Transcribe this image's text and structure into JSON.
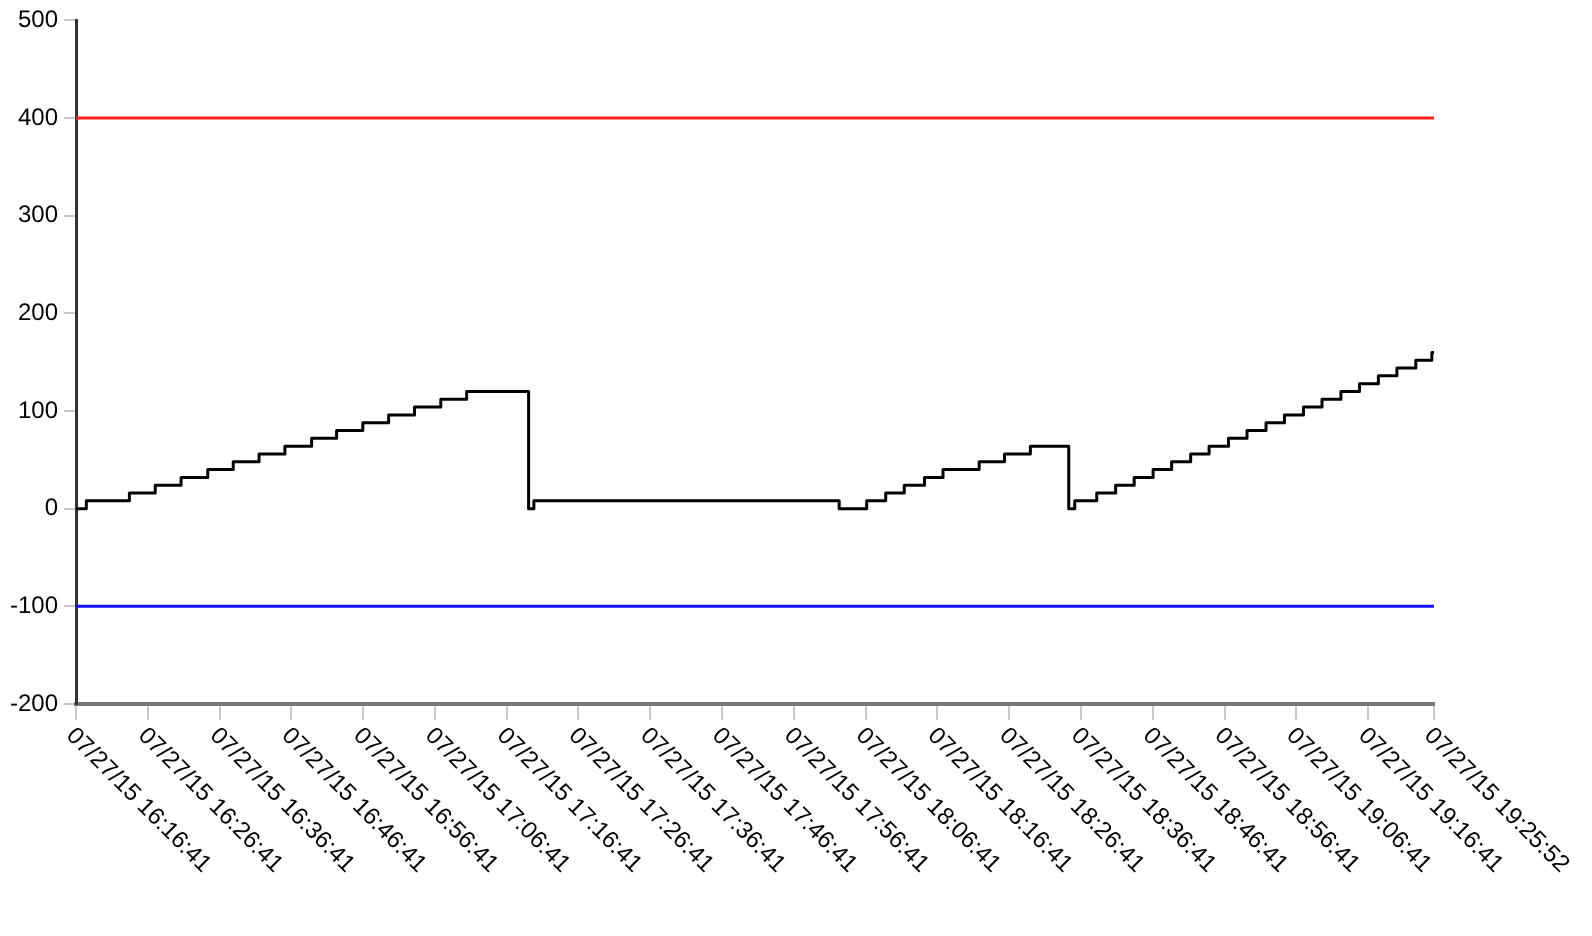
{
  "chart_data": {
    "type": "step",
    "x": [
      "--07-27T16:16:41",
      "--07-27T16:18:07",
      "--07-27T16:24:07",
      "--07-27T16:27:43",
      "--07-27T16:31:19",
      "--07-27T16:35:02",
      "--07-27T16:38:35",
      "--07-27T16:42:11",
      "--07-27T16:45:47",
      "--07-27T16:49:30",
      "--07-27T16:52:59",
      "--07-27T16:56:38",
      "--07-27T17:00:14",
      "--07-27T17:03:50",
      "--07-27T17:07:30",
      "--07-27T17:11:06",
      "--07-27T17:19:44",
      "--07-27T17:20:28",
      "--07-27T18:03:00",
      "--07-27T18:06:50",
      "--07-27T18:09:29",
      "--07-27T18:12:04",
      "--07-27T18:14:53",
      "--07-27T18:17:28",
      "--07-27T18:22:30",
      "--07-27T18:26:02",
      "--07-27T18:29:38",
      "--07-27T18:34:59",
      "--07-27T18:35:49",
      "--07-27T18:38:53",
      "--07-27T18:41:31",
      "--07-27T18:44:06",
      "--07-27T18:46:44",
      "--07-27T18:49:19",
      "--07-27T18:51:58",
      "--07-27T18:54:32",
      "--07-27T18:57:14",
      "--07-27T18:59:49",
      "--07-27T19:02:28",
      "--07-27T19:05:02",
      "--07-27T19:07:41",
      "--07-27T19:10:16",
      "--07-27T19:12:54",
      "--07-27T19:15:29",
      "--07-27T19:18:07",
      "--07-27T19:20:42",
      "--07-27T19:23:20",
      "--07-27T19:25:34",
      "--07-27T19:25:52"
    ],
    "series": [
      {
        "color": "#000000",
        "values": [
          0,
          8,
          16,
          24,
          32,
          40,
          48,
          56,
          64,
          72,
          80,
          88,
          96,
          104,
          112,
          120,
          0,
          8,
          0,
          8,
          16,
          24,
          32,
          40,
          48,
          56,
          64,
          0,
          8,
          16,
          24,
          32,
          40,
          48,
          56,
          64,
          72,
          80,
          88,
          96,
          104,
          112,
          120,
          128,
          136,
          144,
          152,
          160,
          160
        ]
      }
    ],
    "xlim": [
      "--07-27T16:16:41",
      "--07-27T19:25:52"
    ],
    "xticks": [
      {
        "value": "--07-27T16:16:41",
        "label": "07/27/15 16:16:41"
      },
      {
        "value": "--07-27T16:26:41",
        "label": "07/27/15 16:26:41"
      },
      {
        "value": "--07-27T16:36:41",
        "label": "07/27/15 16:36:41"
      },
      {
        "value": "--07-27T16:46:41",
        "label": "07/27/15 16:46:41"
      },
      {
        "value": "--07-27T16:56:41",
        "label": "07/27/15 16:56:41"
      },
      {
        "value": "--07-27T17:06:41",
        "label": "07/27/15 17:06:41"
      },
      {
        "value": "--07-27T17:16:41",
        "label": "07/27/15 17:16:41"
      },
      {
        "value": "--07-27T17:26:41",
        "label": "07/27/15 17:26:41"
      },
      {
        "value": "--07-27T17:36:41",
        "label": "07/27/15 17:36:41"
      },
      {
        "value": "--07-27T17:46:41",
        "label": "07/27/15 17:46:41"
      },
      {
        "value": "--07-27T17:56:41",
        "label": "07/27/15 17:56:41"
      },
      {
        "value": "--07-27T18:06:41",
        "label": "07/27/15 18:06:41"
      },
      {
        "value": "--07-27T18:16:41",
        "label": "07/27/15 18:16:41"
      },
      {
        "value": "--07-27T18:26:41",
        "label": "07/27/15 18:26:41"
      },
      {
        "value": "--07-27T18:36:41",
        "label": "07/27/15 18:36:41"
      },
      {
        "value": "--07-27T18:46:41",
        "label": "07/27/15 18:46:41"
      },
      {
        "value": "--07-27T18:56:41",
        "label": "07/27/15 18:56:41"
      },
      {
        "value": "--07-27T19:06:41",
        "label": "07/27/15 19:06:41"
      },
      {
        "value": "--07-27T19:16:41",
        "label": "07/27/15 19:16:41"
      },
      {
        "value": "--07-27T19:25:52",
        "label": "07/27/15 19:25:52"
      }
    ],
    "ylim": [
      -200,
      500
    ],
    "yticks": [
      -200,
      -100,
      0,
      100,
      200,
      300,
      400,
      500
    ],
    "ref_lines": [
      {
        "axis": "y",
        "value": 400,
        "color": "#ff2020"
      },
      {
        "axis": "y",
        "value": -100,
        "color": "#1010ff"
      }
    ],
    "grid": false,
    "legend": false,
    "marker": "none",
    "line_style": "solid"
  }
}
